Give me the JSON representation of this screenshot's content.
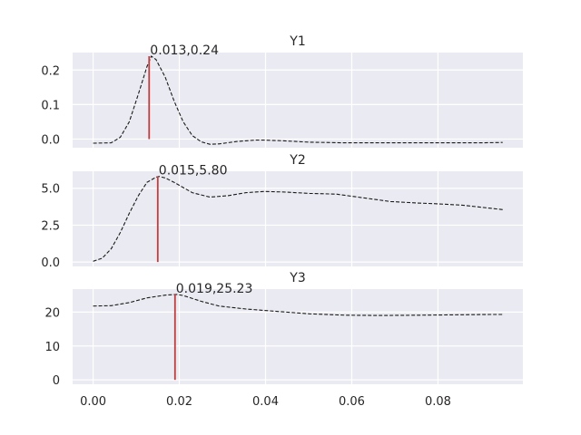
{
  "chart_data": [
    {
      "type": "line",
      "title": "Y1",
      "xlim": [
        -0.00475,
        0.0997
      ],
      "ylim": [
        -0.0251,
        0.2506
      ],
      "yticks": [
        0.0,
        0.1,
        0.2
      ],
      "ytick_labels": [
        "0.0",
        "0.1",
        "0.2"
      ],
      "grid": true,
      "style": {
        "line": "#1a1a1a",
        "dash": "dashed",
        "marker_color": "#c03d3e"
      },
      "x": [
        0.0,
        0.0042,
        0.0063,
        0.0084,
        0.0105,
        0.0125,
        0.0135,
        0.0146,
        0.0167,
        0.0188,
        0.0209,
        0.023,
        0.0251,
        0.0271,
        0.0292,
        0.0334,
        0.0376,
        0.0397,
        0.0439,
        0.0502,
        0.0585,
        0.069,
        0.0794,
        0.0899,
        0.095
      ],
      "y": [
        -0.012,
        -0.011,
        0.005,
        0.05,
        0.13,
        0.21,
        0.24,
        0.23,
        0.18,
        0.11,
        0.05,
        0.01,
        -0.008,
        -0.015,
        -0.014,
        -0.007,
        -0.003,
        -0.003,
        -0.005,
        -0.009,
        -0.011,
        -0.011,
        -0.011,
        -0.011,
        -0.01
      ],
      "peak": {
        "x": 0.013,
        "y": 0.24,
        "label": "0.013,0.24"
      }
    },
    {
      "type": "line",
      "title": "Y2",
      "xlim": [
        -0.00475,
        0.0997
      ],
      "ylim": [
        -0.3,
        6.15
      ],
      "yticks": [
        0.0,
        2.5,
        5.0
      ],
      "ytick_labels": [
        "0.0",
        "2.5",
        "5.0"
      ],
      "grid": true,
      "style": {
        "line": "#1a1a1a",
        "dash": "dashed",
        "marker_color": "#c03d3e"
      },
      "x": [
        0.0,
        0.0021,
        0.0042,
        0.0063,
        0.0084,
        0.0105,
        0.0125,
        0.0146,
        0.0153,
        0.0167,
        0.0188,
        0.023,
        0.0271,
        0.0313,
        0.0355,
        0.0397,
        0.0439,
        0.0502,
        0.0564,
        0.0627,
        0.069,
        0.0752,
        0.0794,
        0.0857,
        0.092,
        0.095
      ],
      "y": [
        0.05,
        0.25,
        0.9,
        2.0,
        3.3,
        4.5,
        5.4,
        5.75,
        5.8,
        5.7,
        5.4,
        4.7,
        4.4,
        4.5,
        4.7,
        4.78,
        4.75,
        4.65,
        4.6,
        4.35,
        4.1,
        4.0,
        3.95,
        3.85,
        3.65,
        3.55
      ],
      "peak": {
        "x": 0.015,
        "y": 5.8,
        "label": "0.015,5.80"
      }
    },
    {
      "type": "line",
      "title": "Y3",
      "xlim": [
        -0.00475,
        0.0997
      ],
      "ylim": [
        -1.3,
        26.8
      ],
      "yticks": [
        0,
        10,
        20
      ],
      "ytick_labels": [
        "0",
        "10",
        "20"
      ],
      "grid": true,
      "style": {
        "line": "#1a1a1a",
        "dash": "dashed",
        "marker_color": "#c03d3e"
      },
      "xticks": [
        0.0,
        0.02,
        0.04,
        0.06,
        0.08
      ],
      "xtick_labels": [
        "0.00",
        "0.02",
        "0.04",
        "0.06",
        "0.08"
      ],
      "x": [
        0.0,
        0.0042,
        0.0084,
        0.0125,
        0.0167,
        0.0194,
        0.0209,
        0.0251,
        0.0292,
        0.0355,
        0.0418,
        0.0502,
        0.0585,
        0.0669,
        0.0752,
        0.0836,
        0.092,
        0.095
      ],
      "y": [
        21.8,
        21.9,
        22.8,
        24.2,
        25.0,
        25.23,
        24.9,
        23.2,
        21.8,
        20.9,
        20.3,
        19.5,
        19.1,
        19.0,
        19.1,
        19.2,
        19.3,
        19.3
      ],
      "peak": {
        "x": 0.019,
        "y": 25.23,
        "label": "0.019,25.23"
      }
    }
  ]
}
